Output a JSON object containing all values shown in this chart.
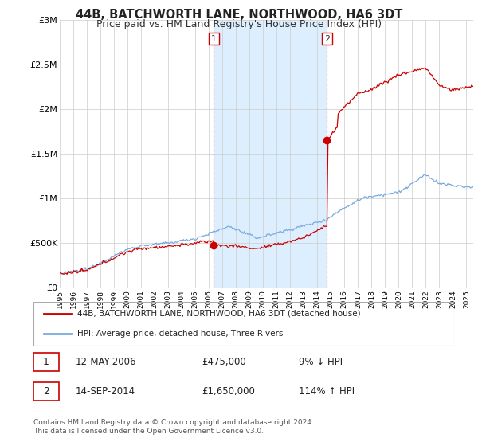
{
  "title": "44B, BATCHWORTH LANE, NORTHWOOD, HA6 3DT",
  "subtitle": "Price paid vs. HM Land Registry's House Price Index (HPI)",
  "legend_line1": "44B, BATCHWORTH LANE, NORTHWOOD, HA6 3DT (detached house)",
  "legend_line2": "HPI: Average price, detached house, Three Rivers",
  "annotation1_date": "12-MAY-2006",
  "annotation1_price": "£475,000",
  "annotation1_hpi": "9% ↓ HPI",
  "annotation2_date": "14-SEP-2014",
  "annotation2_price": "£1,650,000",
  "annotation2_hpi": "114% ↑ HPI",
  "footer": "Contains HM Land Registry data © Crown copyright and database right 2024.\nThis data is licensed under the Open Government Licence v3.0.",
  "red_color": "#cc0000",
  "blue_color": "#7aaadd",
  "vline_color": "#dd4444",
  "shade_color": "#ddeeff",
  "grid_color": "#cccccc",
  "ylim": [
    0,
    3000000
  ],
  "yticks": [
    0,
    500000,
    1000000,
    1500000,
    2000000,
    2500000,
    3000000
  ],
  "ytick_labels": [
    "£0",
    "£500K",
    "£1M",
    "£1.5M",
    "£2M",
    "£2.5M",
    "£3M"
  ],
  "sale1_year": 2006.37,
  "sale1_price": 475000,
  "sale2_year": 2014.71,
  "sale2_price": 1650000,
  "xmin": 1995.0,
  "xmax": 2025.5
}
